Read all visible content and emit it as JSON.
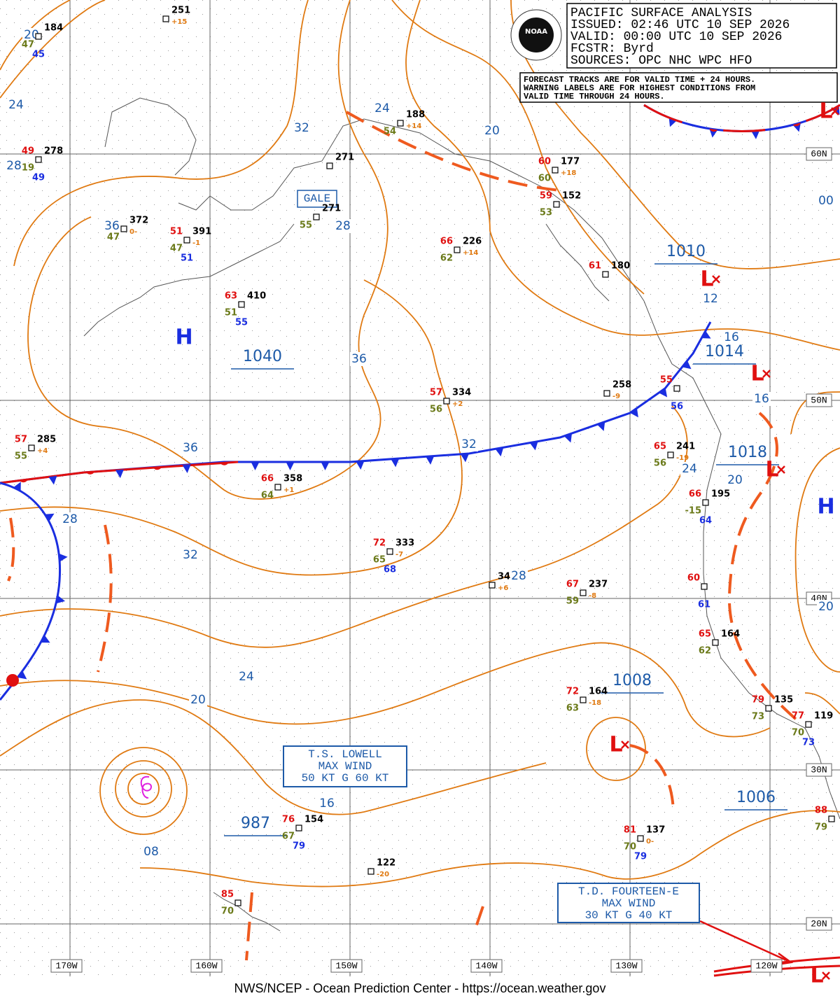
{
  "header": {
    "logo": "NOAA",
    "lines": [
      "PACIFIC SURFACE ANALYSIS",
      "ISSUED: 02:46 UTC 10 SEP 2026",
      "VALID:  00:00 UTC 10 SEP 2026",
      "FCSTR:  Byrd",
      "SOURCES: OPC NHC WPC HFO"
    ]
  },
  "notice": [
    "FORECAST TRACKS ARE FOR VALID TIME + 24 HOURS.",
    "WARNING LABELS ARE FOR HIGHEST CONDITIONS FROM",
    "VALID TIME THROUGH 24 HOURS."
  ],
  "latitudes": [
    "60N",
    "50N",
    "40N",
    "30N",
    "20N"
  ],
  "longitudes": [
    "170W",
    "160W",
    "150W",
    "140W",
    "130W",
    "120W"
  ],
  "isobar_labels": [
    "20",
    "24",
    "28",
    "32",
    "24",
    "20",
    "28",
    "36",
    "36",
    "12",
    "16",
    "16",
    "36",
    "32",
    "24",
    "20",
    "28",
    "32",
    "28",
    "24",
    "20",
    "16",
    "08",
    "20",
    "00"
  ],
  "pressure_centers": [
    "1040",
    "1010",
    "1014",
    "1018",
    "1008",
    "1006",
    "987"
  ],
  "highs": [
    "H",
    "H"
  ],
  "lows": [
    "L",
    "L",
    "L",
    "L",
    "L",
    "L"
  ],
  "gale": "GALE",
  "storms": [
    {
      "lines": [
        "T.S. LOWELL",
        "MAX WIND",
        "50 KT G 60 KT"
      ]
    },
    {
      "lines": [
        "T.D. FOURTEEN-E",
        "MAX WIND",
        "30 KT G 40 KT"
      ]
    }
  ],
  "stations": [
    {
      "pressure": "251",
      "tendency": "+15"
    },
    {
      "pressure": "184",
      "dewpoint": "47",
      "wave": "45"
    },
    {
      "temp": "49",
      "pressure": "278",
      "dewpoint": "19",
      "wave": "49"
    },
    {
      "pressure": "372",
      "tendency": "0-",
      "dewpoint": "47"
    },
    {
      "temp": "51",
      "pressure": "391",
      "tendency": "-1",
      "dewpoint": "47",
      "wave": "51"
    },
    {
      "temp": "63",
      "pressure": "410",
      "dewpoint": "51",
      "wave": "55"
    },
    {
      "pressure": "271",
      "dewpoint": "55"
    },
    {
      "pressure": "271"
    },
    {
      "pressure": "188",
      "tendency": "+14",
      "dewpoint": "54"
    },
    {
      "temp": "60",
      "pressure": "177",
      "tendency": "+18",
      "dewpoint": "60"
    },
    {
      "temp": "59",
      "pressure": "152",
      "dewpoint": "53"
    },
    {
      "temp": "66",
      "pressure": "226",
      "tendency": "+14",
      "dewpoint": "62"
    },
    {
      "temp": "61",
      "pressure": "180"
    },
    {
      "temp": "57",
      "pressure": "334",
      "tendency": "+2",
      "dewpoint": "56"
    },
    {
      "pressure": "258",
      "tendency": "-9"
    },
    {
      "temp": "55",
      "wave": "56"
    },
    {
      "temp": "65",
      "pressure": "241",
      "tendency": "-19",
      "dewpoint": "56"
    },
    {
      "temp": "57",
      "pressure": "285",
      "tendency": "+4",
      "dewpoint": "55"
    },
    {
      "temp": "66",
      "pressure": "358",
      "tendency": "+1",
      "dewpoint": "64"
    },
    {
      "temp": "72",
      "pressure": "333",
      "tendency": "-7",
      "dewpoint": "65",
      "wave": "68"
    },
    {
      "pressure": "34",
      "tendency": "+6"
    },
    {
      "temp": "67",
      "pressure": "237",
      "tendency": "-8",
      "dewpoint": "59"
    },
    {
      "temp": "66",
      "pressure": "195",
      "dewpoint": "-15",
      "wave": "64"
    },
    {
      "temp": "60",
      "wave": "61"
    },
    {
      "temp": "65",
      "pressure": "164",
      "dewpoint": "62"
    },
    {
      "temp": "72",
      "pressure": "164",
      "tendency": "-18",
      "dewpoint": "63"
    },
    {
      "temp": "79",
      "pressure": "135",
      "dewpoint": "73"
    },
    {
      "temp": "77",
      "pressure": "119",
      "dewpoint": "70",
      "wave": "73"
    },
    {
      "temp": "76",
      "pressure": "154",
      "dewpoint": "67",
      "wave": "79"
    },
    {
      "pressure": "122",
      "tendency": "-20"
    },
    {
      "temp": "81",
      "pressure": "137",
      "tendency": "0-",
      "dewpoint": "70",
      "wave": "79"
    },
    {
      "temp": "85",
      "dewpoint": "70"
    },
    {
      "temp": "88",
      "dewpoint": "79"
    }
  ],
  "footer": "NWS/NCEP - Ocean Prediction Center - https://ocean.weather.gov"
}
